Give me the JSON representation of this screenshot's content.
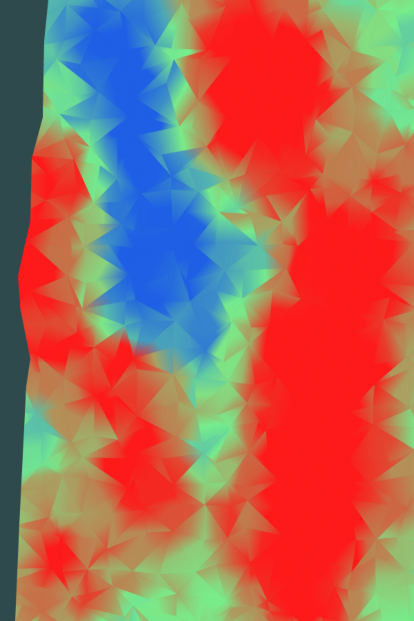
{
  "scene": {
    "background_color": "#2f4a4d",
    "palette": {
      "low": "#1f5fe6",
      "mid": "#78f08c",
      "high": "#ff1a1a",
      "accent": "#d48a4c"
    }
  }
}
